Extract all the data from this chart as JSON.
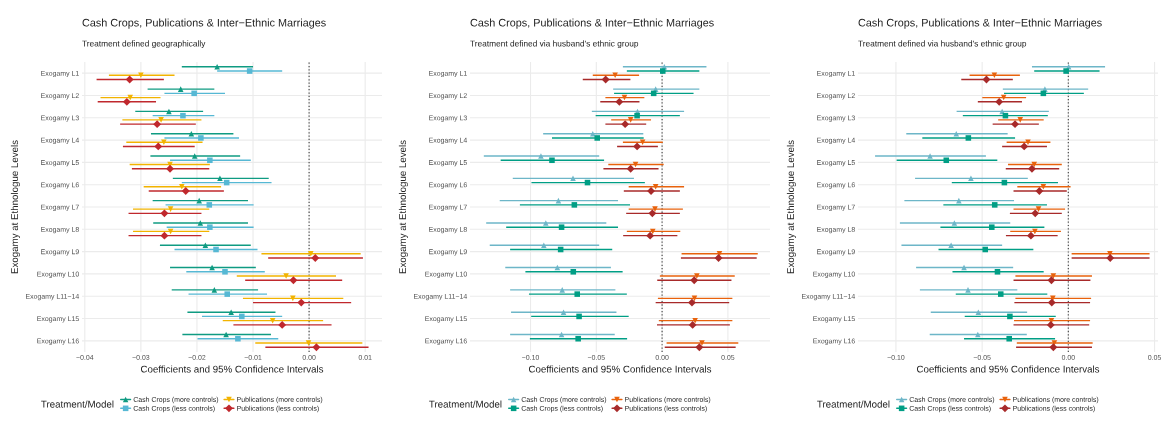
{
  "chart_data": [
    {
      "type": "scatter",
      "orientation": "horizontal",
      "title": "Cash Crops, Publications & Inter−Ethnic Marriages",
      "subtitle": "Treatment defined geographically",
      "xlabel": "Coefficients and 95% Confidence Intervals",
      "ylabel": "Exogamy at Ethnologue Levels",
      "legend_title": "Treatment/Model",
      "legend": "bottom",
      "grid": true,
      "categories": [
        "Exogamy L1",
        "Exogamy L2",
        "Exogamy L3",
        "Exogamy L4",
        "Exogamy L5",
        "Exogamy L6",
        "Exogamy L7",
        "Exogamy L8",
        "Exogamy L9",
        "Exogamy L10",
        "Exogamy L11−14",
        "Exogamy L15",
        "Exogamy L16"
      ],
      "xlim": [
        -0.0405,
        0.013
      ],
      "xticks": [
        {
          "value": -0.04,
          "label": "−0.04"
        },
        {
          "value": -0.03,
          "label": "−0.03"
        },
        {
          "value": -0.02,
          "label": "−0.02"
        },
        {
          "value": -0.01,
          "label": "−0.01"
        },
        {
          "value": 0,
          "label": "0.00"
        },
        {
          "value": 0.01,
          "label": "0.01"
        }
      ],
      "ref_lines": [
        {
          "axis": "x",
          "value": 0,
          "line_style": "dotted",
          "color": "#555555"
        }
      ],
      "series": [
        {
          "name": "Cash Crops (more controls)",
          "color": "#0f9b82",
          "marker": "triangle",
          "values": [
            -0.0164,
            -0.0229,
            -0.025,
            -0.021,
            -0.0204,
            -0.0159,
            -0.0196,
            -0.0194,
            -0.0185,
            -0.0173,
            -0.0169,
            -0.0139,
            -0.0148
          ],
          "errors": [
            [
              -0.0227,
              -0.01
            ],
            [
              -0.0288,
              -0.0169
            ],
            [
              -0.031,
              -0.0189
            ],
            [
              -0.0282,
              -0.0135
            ],
            [
              -0.0283,
              -0.0123
            ],
            [
              -0.0243,
              -0.0072
            ],
            [
              -0.0279,
              -0.0109
            ],
            [
              -0.0278,
              -0.0109
            ],
            [
              -0.0266,
              -0.0104
            ],
            [
              -0.0248,
              -0.0095
            ],
            [
              -0.0245,
              -0.0091
            ],
            [
              -0.0217,
              -0.006
            ],
            [
              -0.0226,
              -0.0068
            ]
          ]
        },
        {
          "name": "Cash Crops (less controls)",
          "color": "#56b8d4",
          "marker": "square",
          "values": [
            -0.0106,
            -0.0205,
            -0.0225,
            -0.0193,
            -0.0177,
            -0.0147,
            -0.0178,
            -0.0177,
            -0.0166,
            -0.015,
            -0.0146,
            -0.012,
            -0.0127
          ],
          "errors": [
            [
              -0.0164,
              -0.0048
            ],
            [
              -0.0258,
              -0.015
            ],
            [
              -0.0279,
              -0.0169
            ],
            [
              -0.0258,
              -0.0125
            ],
            [
              -0.0248,
              -0.0104
            ],
            [
              -0.0227,
              -0.0067
            ],
            [
              -0.0256,
              -0.0099
            ],
            [
              -0.0254,
              -0.0099
            ],
            [
              -0.024,
              -0.0092
            ],
            [
              -0.0219,
              -0.0079
            ],
            [
              -0.0215,
              -0.0075
            ],
            [
              -0.0191,
              -0.0048
            ],
            [
              -0.0199,
              -0.0055
            ]
          ]
        },
        {
          "name": "Publications (more controls)",
          "color": "#f2b300",
          "marker": "triangle_down",
          "values": [
            -0.03,
            -0.0319,
            -0.0264,
            -0.0259,
            -0.0248,
            -0.0227,
            -0.0247,
            -0.0247,
            0.0003,
            -0.0041,
            -0.0029,
            -0.0065,
            -0.0001
          ],
          "errors": [
            [
              -0.0357,
              -0.024
            ],
            [
              -0.0372,
              -0.0265
            ],
            [
              -0.0333,
              -0.0192
            ],
            [
              -0.0326,
              -0.019
            ],
            [
              -0.032,
              -0.0177
            ],
            [
              -0.0295,
              -0.0157
            ],
            [
              -0.0314,
              -0.0178
            ],
            [
              -0.0314,
              -0.0178
            ],
            [
              -0.0085,
              0.0092
            ],
            [
              -0.0129,
              0.0048
            ],
            [
              -0.0118,
              0.0061
            ],
            [
              -0.0154,
              0.0025
            ],
            [
              -0.0096,
              0.0095
            ]
          ]
        },
        {
          "name": "Publications (less controls)",
          "color": "#c0282d",
          "marker": "diamond",
          "values": [
            -0.032,
            -0.0325,
            -0.0271,
            -0.0269,
            -0.0248,
            -0.022,
            -0.0258,
            -0.0258,
            0.0011,
            -0.0028,
            -0.0014,
            -0.0048,
            0.0013
          ],
          "errors": [
            [
              -0.0379,
              -0.0259
            ],
            [
              -0.0377,
              -0.0273
            ],
            [
              -0.0337,
              -0.0202
            ],
            [
              -0.0332,
              -0.0204
            ],
            [
              -0.0316,
              -0.0178
            ],
            [
              -0.0286,
              -0.0152
            ],
            [
              -0.0322,
              -0.0192
            ],
            [
              -0.0322,
              -0.0192
            ],
            [
              -0.0073,
              0.0096
            ],
            [
              -0.0114,
              0.0059
            ],
            [
              -0.01,
              0.0075
            ],
            [
              -0.0135,
              0.004
            ],
            [
              -0.0078,
              0.0106
            ]
          ]
        }
      ]
    },
    {
      "type": "scatter",
      "orientation": "horizontal",
      "title": "Cash Crops, Publications & Inter−Ethnic Marriages",
      "subtitle": "Treatment defined via husband's ethnic group",
      "xlabel": "Coefficients and 95% Confidence Intervals",
      "ylabel": "Exogamy at Ethnologue Levels",
      "legend_title": "Treatment/Model",
      "legend": "bottom",
      "grid": true,
      "categories": [
        "Exogamy L1",
        "Exogamy L2",
        "Exogamy L3",
        "Exogamy L4",
        "Exogamy L5",
        "Exogamy L6",
        "Exogamy L7",
        "Exogamy L8",
        "Exogamy L9",
        "Exogamy L10",
        "Exogamy L11−14",
        "Exogamy L15",
        "Exogamy L16"
      ],
      "xlim": [
        -0.146,
        0.082
      ],
      "xticks": [
        {
          "value": -0.1,
          "label": "−0.10"
        },
        {
          "value": -0.05,
          "label": "−0.05"
        },
        {
          "value": 0,
          "label": "0.00"
        },
        {
          "value": 0.05,
          "label": "0.05"
        }
      ],
      "ref_lines": [
        {
          "axis": "x",
          "value": 0,
          "line_style": "dotted",
          "color": "#555555"
        }
      ],
      "series": [
        {
          "name": "Cash Crops (more controls)",
          "color": "#6db6c8",
          "marker": "triangle",
          "values": [
            0.0017,
            -0.0049,
            -0.0187,
            -0.0527,
            -0.0921,
            -0.0677,
            -0.0788,
            -0.0884,
            -0.0899,
            -0.0796,
            -0.0759,
            -0.0749,
            -0.0764
          ],
          "errors": [
            [
              -0.0298,
              0.0337
            ],
            [
              -0.0372,
              0.0283
            ],
            [
              -0.0534,
              0.0167
            ],
            [
              -0.0904,
              -0.0143
            ],
            [
              -0.1355,
              -0.0478
            ],
            [
              -0.1135,
              -0.0214
            ],
            [
              -0.1234,
              -0.0335
            ],
            [
              -0.1337,
              -0.0424
            ],
            [
              -0.131,
              -0.0478
            ],
            [
              -0.1192,
              -0.0389
            ],
            [
              -0.1155,
              -0.0355
            ],
            [
              -0.1148,
              -0.0347
            ],
            [
              -0.1155,
              -0.036
            ]
          ]
        },
        {
          "name": "Cash Crops (less controls)",
          "color": "#009e85",
          "marker": "square",
          "values": [
            0.0005,
            -0.0064,
            -0.019,
            -0.0493,
            -0.0837,
            -0.0567,
            -0.0667,
            -0.0764,
            -0.0771,
            -0.0675,
            -0.0645,
            -0.0631,
            -0.0638
          ],
          "errors": [
            [
              -0.0268,
              0.0283
            ],
            [
              -0.0365,
              0.0239
            ],
            [
              -0.0505,
              0.0135
            ],
            [
              -0.0837,
              -0.014
            ],
            [
              -0.1227,
              -0.0441
            ],
            [
              -0.0993,
              -0.0131
            ],
            [
              -0.1081,
              -0.0244
            ],
            [
              -0.1185,
              -0.0335
            ],
            [
              -0.1155,
              -0.0379
            ],
            [
              -0.1039,
              -0.03
            ],
            [
              -0.1012,
              -0.0268
            ],
            [
              -0.0995,
              -0.0254
            ],
            [
              -0.1005,
              -0.0266
            ]
          ]
        },
        {
          "name": "Publications (more controls)",
          "color": "#e8620c",
          "marker": "triangle_down",
          "values": [
            -0.0357,
            -0.0286,
            -0.0239,
            -0.0148,
            -0.0202,
            -0.0049,
            -0.0054,
            -0.0071,
            0.0436,
            0.0264,
            0.0246,
            0.0251,
            0.0303
          ],
          "errors": [
            [
              -0.0527,
              -0.0175
            ],
            [
              -0.0431,
              -0.0135
            ],
            [
              -0.0387,
              -0.0084
            ],
            [
              -0.0298,
              0.0005
            ],
            [
              -0.0409,
              0.0012
            ],
            [
              -0.0254,
              0.0167
            ],
            [
              -0.0254,
              0.0158
            ],
            [
              -0.0268,
              0.0138
            ],
            [
              0.0148,
              0.0727
            ],
            [
              -0.0017,
              0.0552
            ],
            [
              -0.0032,
              0.0534
            ],
            [
              -0.0025,
              0.0534
            ],
            [
              0.0034,
              0.0579
            ]
          ]
        },
        {
          "name": "Publications (less controls)",
          "color": "#a82a2a",
          "marker": "diamond",
          "values": [
            -0.0429,
            -0.0325,
            -0.0281,
            -0.019,
            -0.0239,
            -0.0084,
            -0.0074,
            -0.0091,
            0.0429,
            0.0244,
            0.0227,
            0.0232,
            0.0283
          ],
          "errors": [
            [
              -0.0603,
              -0.0241
            ],
            [
              -0.047,
              -0.0172
            ],
            [
              -0.0431,
              -0.0121
            ],
            [
              -0.0342,
              -0.0032
            ],
            [
              -0.0446,
              -0.0027
            ],
            [
              -0.0291,
              0.0135
            ],
            [
              -0.0273,
              0.0135
            ],
            [
              -0.0296,
              0.0116
            ],
            [
              0.0143,
              0.0719
            ],
            [
              -0.0037,
              0.0527
            ],
            [
              -0.0049,
              0.051
            ],
            [
              -0.0039,
              0.0515
            ],
            [
              0.002,
              0.0559
            ]
          ]
        }
      ]
    },
    {
      "type": "scatter",
      "orientation": "horizontal",
      "title": "Cash Crops, Publications & Inter−Ethnic Marriages",
      "subtitle": "Treatment defined via husband's ethnic group",
      "xlabel": "Coefficients and 95% Confidence Intervals",
      "ylabel": "Exogamy at Ethnologue Levels",
      "legend_title": "Treatment/Model",
      "legend": "bottom",
      "grid": true,
      "categories": [
        "Exogamy L1",
        "Exogamy L2",
        "Exogamy L3",
        "Exogamy L4",
        "Exogamy L5",
        "Exogamy L6",
        "Exogamy L7",
        "Exogamy L8",
        "Exogamy L9",
        "Exogamy L10",
        "Exogamy L11−14",
        "Exogamy L15",
        "Exogamy L16"
      ],
      "xlim": [
        -0.122,
        0.052
      ],
      "xticks": [
        {
          "value": -0.1,
          "label": "−0.10"
        },
        {
          "value": -0.05,
          "label": "−0.05"
        },
        {
          "value": 0,
          "label": "0.00"
        },
        {
          "value": 0.05,
          "label": "0.05"
        }
      ],
      "ref_lines": [
        {
          "axis": "x",
          "value": 0,
          "line_style": "dotted",
          "color": "#555555"
        }
      ],
      "series": [
        {
          "name": "Cash Crops (more controls)",
          "color": "#6db6c8",
          "marker": "triangle",
          "values": [
            0.0002,
            -0.0136,
            -0.0384,
            -0.065,
            -0.0802,
            -0.0565,
            -0.0635,
            -0.0661,
            -0.068,
            -0.0605,
            -0.0582,
            -0.0522,
            -0.0525
          ],
          "errors": [
            [
              -0.0211,
              0.0213
            ],
            [
              -0.038,
              0.0115
            ],
            [
              -0.0648,
              -0.0113
            ],
            [
              -0.094,
              -0.0352
            ],
            [
              -0.1121,
              -0.0478
            ],
            [
              -0.0889,
              -0.0235
            ],
            [
              -0.0951,
              -0.0315
            ],
            [
              -0.0977,
              -0.0337
            ],
            [
              -0.0968,
              -0.0384
            ],
            [
              -0.0883,
              -0.032
            ],
            [
              -0.0861,
              -0.0296
            ],
            [
              -0.0798,
              -0.0239
            ],
            [
              -0.0804,
              -0.0241
            ]
          ]
        },
        {
          "name": "Cash Crops (less controls)",
          "color": "#009e85",
          "marker": "square",
          "values": [
            -0.0013,
            -0.0145,
            -0.0365,
            -0.058,
            -0.0708,
            -0.0371,
            -0.0427,
            -0.0444,
            -0.0482,
            -0.0411,
            -0.0392,
            -0.0339,
            -0.0343
          ],
          "errors": [
            [
              -0.0198,
              0.0181
            ],
            [
              -0.0373,
              0.009
            ],
            [
              -0.0612,
              -0.0119
            ],
            [
              -0.0847,
              -0.0309
            ],
            [
              -0.0996,
              -0.0412
            ],
            [
              -0.0676,
              -0.006
            ],
            [
              -0.0725,
              -0.0124
            ],
            [
              -0.0742,
              -0.0139
            ],
            [
              -0.0753,
              -0.0203
            ],
            [
              -0.0672,
              -0.0143
            ],
            [
              -0.0653,
              -0.0122
            ],
            [
              -0.0601,
              -0.0073
            ],
            [
              -0.0605,
              -0.0077
            ]
          ]
        },
        {
          "name": "Publications (more controls)",
          "color": "#e8620c",
          "marker": "triangle_down",
          "values": [
            -0.0429,
            -0.0375,
            -0.0279,
            -0.0234,
            -0.0198,
            -0.0145,
            -0.0173,
            -0.0194,
            0.0241,
            -0.0087,
            -0.009,
            -0.0098,
            -0.0081
          ],
          "errors": [
            [
              -0.0573,
              -0.0281
            ],
            [
              -0.0499,
              -0.0245
            ],
            [
              -0.0407,
              -0.0143
            ],
            [
              -0.0358,
              -0.0104
            ],
            [
              -0.035,
              -0.0038
            ],
            [
              -0.0296,
              0.0013
            ],
            [
              -0.0318,
              -0.0019
            ],
            [
              -0.0337,
              -0.0043
            ],
            [
              0.0019,
              0.0471
            ],
            [
              -0.0307,
              0.0137
            ],
            [
              -0.0307,
              0.0132
            ],
            [
              -0.0315,
              0.0126
            ],
            [
              -0.0299,
              0.0141
            ]
          ]
        },
        {
          "name": "Publications (less controls)",
          "color": "#a82a2a",
          "marker": "diamond",
          "values": [
            -0.0475,
            -0.0401,
            -0.0309,
            -0.0256,
            -0.0211,
            -0.0168,
            -0.0192,
            -0.0217,
            0.0243,
            -0.0098,
            -0.0096,
            -0.0102,
            -0.0087
          ],
          "errors": [
            [
              -0.0621,
              -0.0322
            ],
            [
              -0.0525,
              -0.0269
            ],
            [
              -0.0439,
              -0.0171
            ],
            [
              -0.0384,
              -0.0124
            ],
            [
              -0.0363,
              -0.0053
            ],
            [
              -0.0318,
              -0.0009
            ],
            [
              -0.0339,
              -0.0038
            ],
            [
              -0.0362,
              -0.0062
            ],
            [
              0.0019,
              0.0471
            ],
            [
              -0.0318,
              0.0128
            ],
            [
              -0.0313,
              0.0126
            ],
            [
              -0.0318,
              0.0121
            ],
            [
              -0.0303,
              0.0137
            ]
          ]
        }
      ]
    }
  ]
}
